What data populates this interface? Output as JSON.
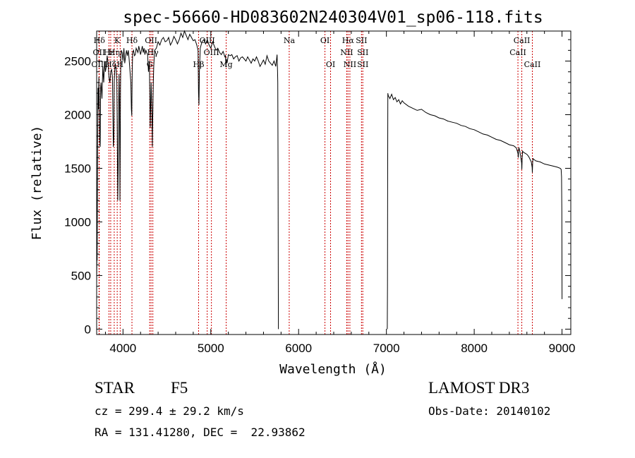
{
  "chart_data": {
    "type": "line",
    "title": "spec-56660-HD083602N240304V01_sp06-118.fits",
    "xlabel": "Wavelength (Å)",
    "ylabel": "Flux (relative)",
    "xlim": [
      3700,
      9100
    ],
    "ylim": [
      -50,
      2780
    ],
    "xticks": [
      4000,
      5000,
      6000,
      7000,
      8000,
      9000
    ],
    "yticks": [
      0,
      500,
      1000,
      1500,
      2000,
      2500
    ],
    "xtick_labels": [
      "4000",
      "5000",
      "6000",
      "7000",
      "8000",
      "9000"
    ],
    "ytick_labels": [
      "0",
      "500",
      "1000",
      "1500",
      "2000",
      "2500"
    ],
    "gap": [
      5770,
      7010
    ],
    "series": [
      {
        "name": "flux",
        "segments": [
          {
            "x": [
              3700,
              3703,
              3706,
              3710,
              3715,
              3720,
              3725,
              3730,
              3735,
              3740,
              3745,
              3750,
              3760,
              3770,
              3780,
              3790,
              3800,
              3810,
              3820,
              3830,
              3840,
              3850,
              3860,
              3870,
              3880,
              3885,
              3890,
              3895,
              3900,
              3910,
              3920,
              3930,
              3935,
              3940,
              3945,
              3950,
              3955,
              3960,
              3965,
              3968,
              3972,
              3976,
              3980,
              3990,
              4000,
              4010,
              4020,
              4030,
              4040,
              4050,
              4060,
              4070,
              4080,
              4090,
              4095,
              4100,
              4102,
              4105,
              4110,
              4120,
              4130,
              4140,
              4150,
              4160,
              4170,
              4180,
              4190,
              4200,
              4210,
              4220,
              4230,
              4240,
              4250,
              4260,
              4270,
              4280,
              4290,
              4300,
              4305,
              4310,
              4320,
              4330,
              4335,
              4338,
              4340,
              4342,
              4345,
              4350,
              4360,
              4380,
              4400,
              4420,
              4440,
              4460,
              4480,
              4500,
              4520,
              4540,
              4560,
              4580,
              4600,
              4620,
              4640,
              4660,
              4680,
              4700,
              4720,
              4740,
              4760,
              4780,
              4800,
              4820,
              4840,
              4855,
              4860,
              4865,
              4870,
              4880,
              4900,
              4920,
              4940,
              4960,
              4980,
              5000,
              5020,
              5040,
              5060,
              5080,
              5100,
              5120,
              5140,
              5160,
              5167,
              5172,
              5178,
              5185,
              5200,
              5220,
              5240,
              5260,
              5280,
              5300,
              5320,
              5340,
              5360,
              5380,
              5400,
              5420,
              5440,
              5460,
              5480,
              5500,
              5520,
              5540,
              5560,
              5580,
              5600,
              5620,
              5640,
              5660,
              5680,
              5700,
              5720,
              5740,
              5755,
              5760,
              5763,
              5766,
              5768,
              5770
            ],
            "y": [
              420,
              730,
              640,
              1500,
              2250,
              2050,
              2350,
              2150,
              1750,
              1700,
              2250,
              2300,
              2150,
              2450,
              2300,
              2500,
              2400,
              2450,
              2550,
              2480,
              2350,
              2300,
              2400,
              2420,
              2350,
              2000,
              1700,
              1780,
              2300,
              2480,
              2450,
              2300,
              1850,
              1200,
              1500,
              2000,
              2380,
              2100,
              1200,
              1650,
              2250,
              2550,
              2600,
              2580,
              2500,
              2620,
              2480,
              2550,
              2600,
              2550,
              2600,
              2520,
              2400,
              2300,
              2050,
              1990,
              2150,
              2400,
              2580,
              2600,
              2550,
              2560,
              2620,
              2600,
              2580,
              2640,
              2600,
              2560,
              2600,
              2640,
              2580,
              2620,
              2560,
              2600,
              2580,
              2560,
              2400,
              2500,
              2200,
              1880,
              2300,
              2000,
              1700,
              1980,
              2000,
              2150,
              2300,
              2450,
              2600,
              2620,
              2680,
              2650,
              2700,
              2720,
              2680,
              2690,
              2720,
              2650,
              2680,
              2730,
              2700,
              2660,
              2700,
              2760,
              2720,
              2780,
              2740,
              2700,
              2750,
              2720,
              2690,
              2700,
              2650,
              2600,
              2200,
              2090,
              2400,
              2620,
              2680,
              2700,
              2660,
              2700,
              2650,
              2620,
              2680,
              2640,
              2600,
              2620,
              2580,
              2560,
              2590,
              2540,
              2550,
              2450,
              2520,
              2480,
              2560,
              2550,
              2560,
              2520,
              2540,
              2550,
              2500,
              2530,
              2540,
              2520,
              2500,
              2540,
              2510,
              2480,
              2520,
              2500,
              2540,
              2500,
              2450,
              2480,
              2510,
              2470,
              2550,
              2500,
              2480,
              2460,
              2500,
              2450,
              2560,
              2400,
              2300,
              1500,
              500,
              0
            ]
          },
          {
            "x": [
              7010,
              7012,
              7014,
              7016,
              7020,
              7040,
              7060,
              7080,
              7100,
              7120,
              7140,
              7160,
              7180,
              7200,
              7250,
              7300,
              7350,
              7400,
              7450,
              7500,
              7550,
              7600,
              7650,
              7700,
              7750,
              7800,
              7850,
              7900,
              7950,
              8000,
              8050,
              8100,
              8150,
              8200,
              8250,
              8300,
              8350,
              8400,
              8450,
              8480,
              8498,
              8502,
              8506,
              8510,
              8520,
              8540,
              8542,
              8546,
              8550,
              8560,
              8580,
              8600,
              8620,
              8650,
              8660,
              8662,
              8666,
              8670,
              8700,
              8750,
              8800,
              8850,
              8900,
              8950,
              8980,
              8990,
              8995,
              8998,
              9000
            ],
            "y": [
              0,
              400,
              1300,
              2200,
              2180,
              2150,
              2190,
              2140,
              2160,
              2120,
              2140,
              2100,
              2130,
              2110,
              2080,
              2060,
              2040,
              2050,
              2020,
              2000,
              1990,
              1970,
              1960,
              1940,
              1930,
              1920,
              1900,
              1890,
              1870,
              1860,
              1840,
              1820,
              1810,
              1790,
              1770,
              1760,
              1740,
              1720,
              1710,
              1690,
              1640,
              1600,
              1680,
              1690,
              1660,
              1550,
              1490,
              1600,
              1660,
              1650,
              1640,
              1630,
              1610,
              1560,
              1510,
              1460,
              1560,
              1590,
              1570,
              1560,
              1540,
              1530,
              1520,
              1510,
              1500,
              1490,
              1420,
              1100,
              280
            ]
          }
        ]
      }
    ],
    "lines_top": [
      {
        "label": "Hδ",
        "x": 3730
      },
      {
        "label": "K",
        "x": 3934
      },
      {
        "label": "Hδ",
        "x": 4102
      },
      {
        "label": "OII",
        "x": 4320
      },
      {
        "label": "OIII",
        "x": 4959
      },
      {
        "label": "Na",
        "x": 5893
      },
      {
        "label": "OI",
        "x": 6300
      },
      {
        "label": "Hα",
        "x": 6563
      },
      {
        "label": "SII",
        "x": 6716
      },
      {
        "label": "CaII",
        "x": 8542
      }
    ],
    "lines_mid": [
      {
        "label": "OII",
        "x": 3727
      },
      {
        "label": "Hε",
        "x": 3840
      },
      {
        "label": "Hη",
        "x": 3900
      },
      {
        "label": "Hγ",
        "x": 4340
      },
      {
        "label": "OIII",
        "x": 5007
      },
      {
        "label": "NII",
        "x": 6548
      },
      {
        "label": "SII",
        "x": 6731
      },
      {
        "label": "CaII",
        "x": 8498
      }
    ],
    "lines_low": [
      {
        "label": "OIII",
        "x": 3727
      },
      {
        "label": "Hζ",
        "x": 3860
      },
      {
        "label": "H",
        "x": 3968
      },
      {
        "label": "G",
        "x": 4304
      },
      {
        "label": "Hβ",
        "x": 4861
      },
      {
        "label": "Mg",
        "x": 5175
      },
      {
        "label": "OI",
        "x": 6364
      },
      {
        "label": "NII",
        "x": 6584
      },
      {
        "label": "SII",
        "x": 6731
      },
      {
        "label": "CaII",
        "x": 8662
      }
    ],
    "marker_color": "#cc0000",
    "line_color": "#000000"
  },
  "info": {
    "class": "STAR",
    "subclass": "F5",
    "survey": "LAMOST DR3",
    "cz": "cz = 299.4 ± 29.2 km/s",
    "obs_date": "Obs-Date: 20140102",
    "coords": "RA = 131.41280, DEC =  22.93862"
  }
}
